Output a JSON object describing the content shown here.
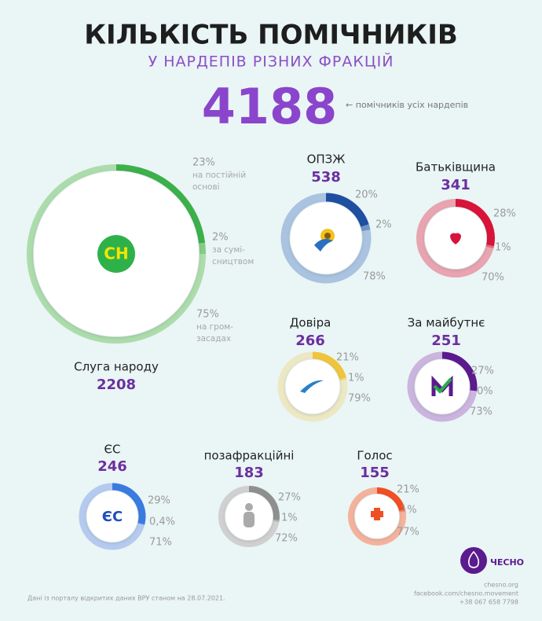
{
  "title": "КІЛЬКІСТЬ ПОМІЧНИКІВ",
  "subtitle": "У НАРДЕПІВ РІЗНИХ ФРАКЦІЙ",
  "total": 4188,
  "total_label": "← помічників усіх нардепів",
  "chart_data": [
    {
      "type": "donut",
      "title": "Слуга народу",
      "total": 2208,
      "logo": "СН",
      "categories": [
        [
          "на постійній",
          "основі"
        ],
        [
          "за сумі-",
          "сництвом"
        ],
        [
          "на гром-",
          "засадах"
        ]
      ],
      "values": [
        23,
        2,
        75
      ],
      "value_labels": [
        "23%",
        "2%",
        "75%"
      ],
      "colors": [
        "#3cb04a",
        "#86cc86",
        "#acdcac"
      ]
    },
    {
      "type": "donut",
      "title": "ОПЗЖ",
      "total": 538,
      "categories": [
        null,
        null,
        null
      ],
      "values": [
        20,
        2,
        78
      ],
      "value_labels": [
        "20%",
        "2%",
        "78%"
      ],
      "colors": [
        "#1f4fa0",
        "#6e95c8",
        "#a9c3e0"
      ]
    },
    {
      "type": "donut",
      "title": "Батьківщина",
      "total": 341,
      "categories": [
        null,
        null,
        null
      ],
      "values": [
        28,
        1,
        70
      ],
      "value_labels": [
        "28%",
        "1%",
        "70%"
      ],
      "colors": [
        "#d8143a",
        "#e06a80",
        "#e8a4b0"
      ]
    },
    {
      "type": "donut",
      "title": "Довіра",
      "total": 266,
      "categories": [
        null,
        null,
        null
      ],
      "values": [
        21,
        1,
        79
      ],
      "value_labels": [
        "21%",
        "1%",
        "79%"
      ],
      "colors": [
        "#f0c43c",
        "#eedc8c",
        "#ece8c4"
      ]
    },
    {
      "type": "donut",
      "title": "За майбутнє",
      "total": 251,
      "categories": [
        null,
        null,
        null
      ],
      "values": [
        27,
        0,
        73
      ],
      "value_labels": [
        "27%",
        "0%",
        "73%"
      ],
      "colors": [
        "#5b1a8e",
        "#9a6cc0",
        "#cbb4de"
      ]
    },
    {
      "type": "donut",
      "title": "ЄС",
      "total": 246,
      "logo": "ЄС",
      "categories": [
        null,
        null,
        null
      ],
      "values": [
        29,
        0.4,
        71
      ],
      "value_labels": [
        "29%",
        "0,4%",
        "71%"
      ],
      "colors": [
        "#3a7be0",
        "#7aa4e8",
        "#b4caef"
      ]
    },
    {
      "type": "donut",
      "title": "позафракційні",
      "total": 183,
      "categories": [
        null,
        null,
        null
      ],
      "values": [
        27,
        1,
        72
      ],
      "value_labels": [
        "27%",
        "1%",
        "72%"
      ],
      "colors": [
        "#8f8f8f",
        "#b0b0b0",
        "#d0d0d0"
      ]
    },
    {
      "type": "donut",
      "title": "Голос",
      "total": 155,
      "categories": [
        null,
        null,
        null
      ],
      "values": [
        21,
        1,
        77
      ],
      "value_labels": [
        "21%",
        "1%",
        "77%"
      ],
      "colors": [
        "#f04e23",
        "#f28a68",
        "#f4b29c"
      ]
    }
  ],
  "brand": "ЧЕСНО",
  "source": "Дані із порталу відкритих даних ВРУ станом на 28.07.2021.",
  "contacts": [
    "chesno.org",
    "facebook.com/chesno.movement",
    "+38 067 658 7798"
  ]
}
